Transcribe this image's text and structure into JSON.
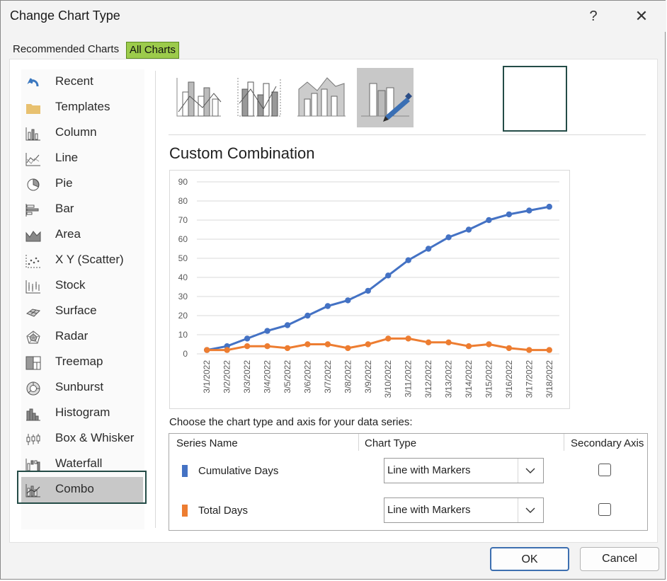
{
  "window": {
    "title": "Change Chart Type",
    "help_label": "?",
    "close_label": "✕"
  },
  "tabs": [
    {
      "label": "Recommended Charts",
      "selected": false
    },
    {
      "label": "All Charts",
      "selected": true
    }
  ],
  "sidebar": {
    "items": [
      {
        "label": "Recent",
        "icon": "undo-arrow-icon"
      },
      {
        "label": "Templates",
        "icon": "folder-icon"
      },
      {
        "label": "Column",
        "icon": "column-chart-icon"
      },
      {
        "label": "Line",
        "icon": "line-chart-icon"
      },
      {
        "label": "Pie",
        "icon": "pie-chart-icon"
      },
      {
        "label": "Bar",
        "icon": "bar-chart-icon"
      },
      {
        "label": "Area",
        "icon": "area-chart-icon"
      },
      {
        "label": "X Y (Scatter)",
        "icon": "scatter-chart-icon"
      },
      {
        "label": "Stock",
        "icon": "stock-chart-icon"
      },
      {
        "label": "Surface",
        "icon": "surface-chart-icon"
      },
      {
        "label": "Radar",
        "icon": "radar-chart-icon"
      },
      {
        "label": "Treemap",
        "icon": "treemap-chart-icon"
      },
      {
        "label": "Sunburst",
        "icon": "sunburst-chart-icon"
      },
      {
        "label": "Histogram",
        "icon": "histogram-chart-icon"
      },
      {
        "label": "Box & Whisker",
        "icon": "box-whisker-chart-icon"
      },
      {
        "label": "Waterfall",
        "icon": "waterfall-chart-icon"
      },
      {
        "label": "Combo",
        "icon": "combo-chart-icon",
        "selected": true
      }
    ]
  },
  "subtypes": [
    {
      "icon": "clustered-column-line-icon"
    },
    {
      "icon": "clustered-column-line-secondary-axis-icon"
    },
    {
      "icon": "stacked-area-clustered-column-icon"
    },
    {
      "icon": "custom-combination-icon",
      "selected": true
    }
  ],
  "main": {
    "subtype_title": "Custom Combination",
    "choose_label": "Choose the chart type and axis for your data series:"
  },
  "series_table": {
    "headers": {
      "series_name": "Series Name",
      "chart_type": "Chart Type",
      "secondary_axis": "Secondary Axis"
    },
    "rows": [
      {
        "name": "Cumulative Days",
        "color": "#4472c4",
        "chart_type": "Line with Markers",
        "secondary_axis": false
      },
      {
        "name": "Total Days",
        "color": "#ed7d31",
        "chart_type": "Line with Markers",
        "secondary_axis": false
      }
    ]
  },
  "buttons": {
    "ok": "OK",
    "cancel": "Cancel"
  },
  "chart_data": {
    "type": "line",
    "categories": [
      "3/1/2022",
      "3/2/2022",
      "3/3/2022",
      "3/4/2022",
      "3/5/2022",
      "3/6/2022",
      "3/7/2022",
      "3/8/2022",
      "3/9/2022",
      "3/10/2022",
      "3/11/2022",
      "3/12/2022",
      "3/13/2022",
      "3/14/2022",
      "3/15/2022",
      "3/16/2022",
      "3/17/2022",
      "3/18/2022"
    ],
    "series": [
      {
        "name": "Cumulative Days",
        "color": "#4472c4",
        "values": [
          2,
          4,
          8,
          12,
          15,
          20,
          25,
          28,
          33,
          41,
          49,
          55,
          61,
          65,
          70,
          73,
          75,
          77
        ]
      },
      {
        "name": "Total Days",
        "color": "#ed7d31",
        "values": [
          2,
          2,
          4,
          4,
          3,
          5,
          5,
          3,
          5,
          8,
          8,
          6,
          6,
          4,
          5,
          3,
          2,
          2
        ]
      }
    ],
    "ylim": [
      0,
      90
    ],
    "yticks": [
      0,
      10,
      20,
      30,
      40,
      50,
      60,
      70,
      80,
      90
    ],
    "grid": true,
    "legend": "none"
  }
}
